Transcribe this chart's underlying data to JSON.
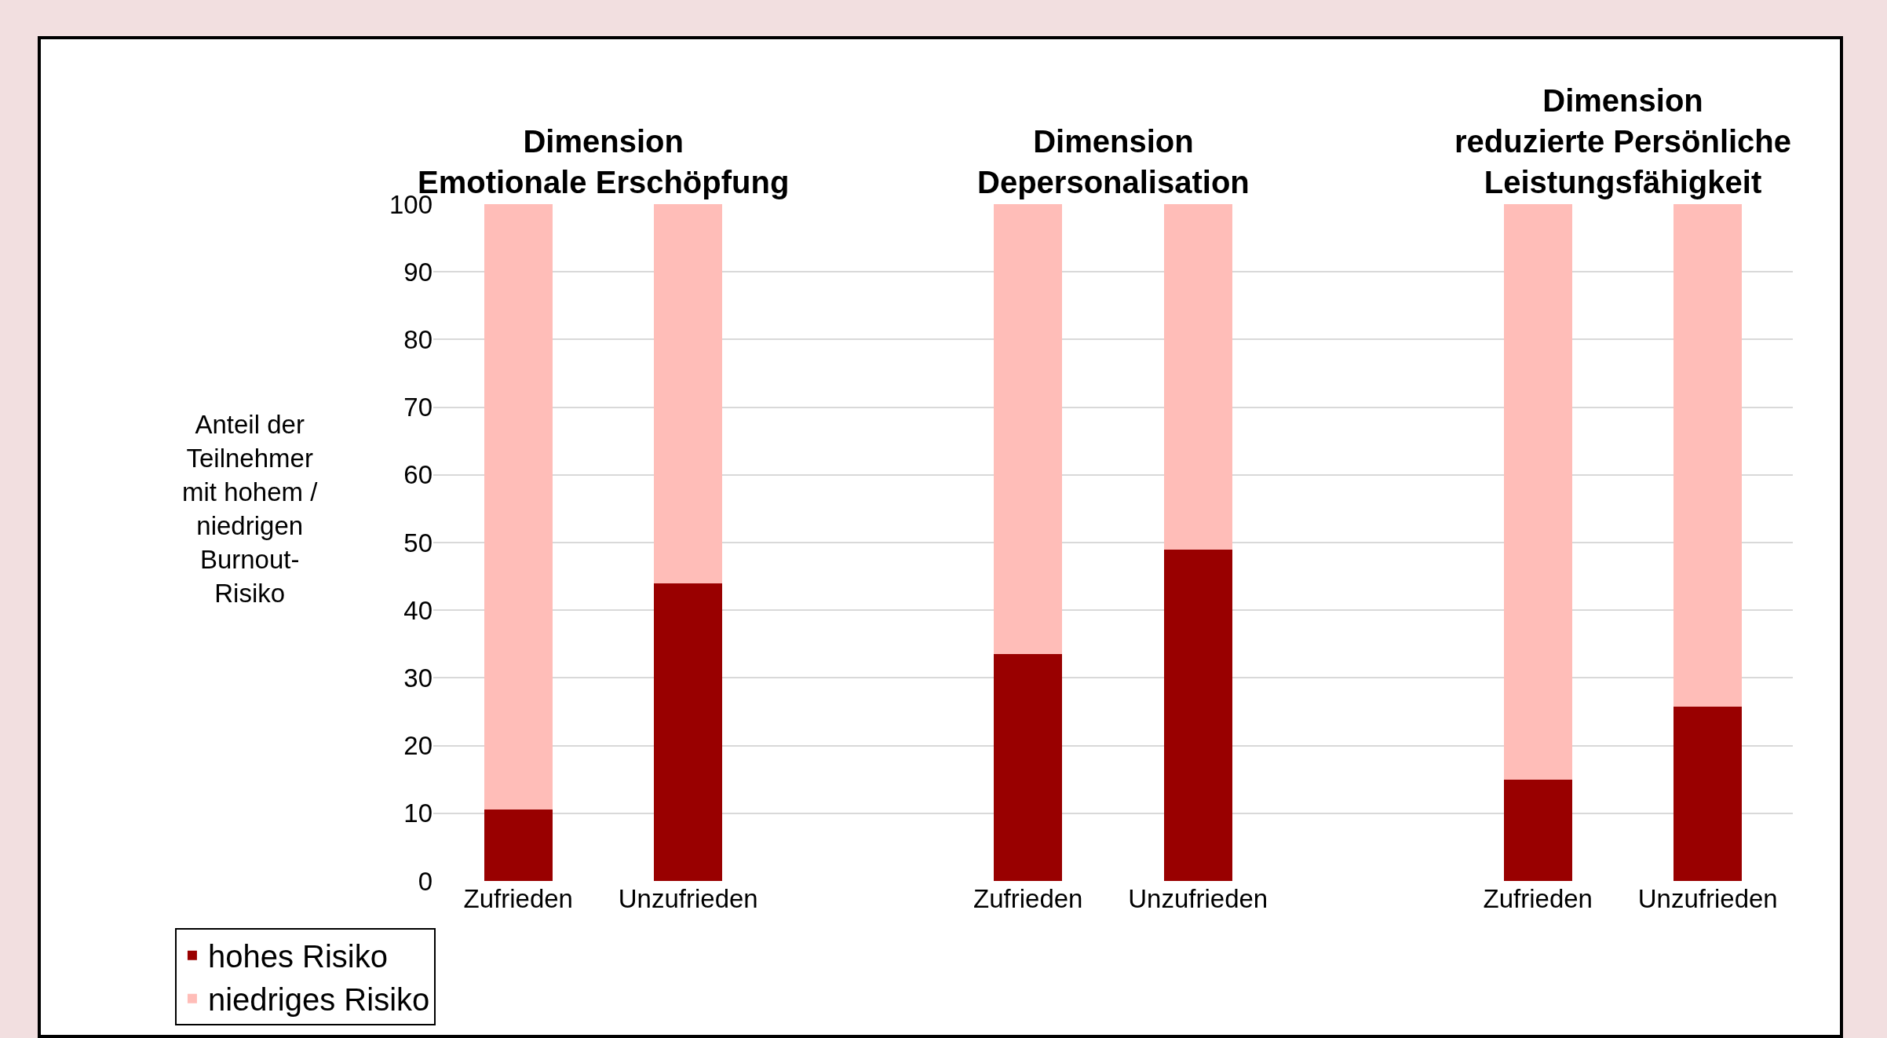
{
  "chart_data": {
    "type": "bar",
    "stacked": true,
    "categories": [
      "Zufrieden",
      "Unzufrieden",
      null,
      "Zufrieden",
      "Unzufrieden",
      null,
      "Zufrieden",
      "Unzufrieden"
    ],
    "series": [
      {
        "name": "hohes Risiko",
        "color": "#990000",
        "values": [
          10.5,
          44,
          null,
          33.5,
          49,
          null,
          15,
          25.7
        ]
      },
      {
        "name": "niedriges Risiko",
        "color": "#ffbdb8",
        "values": [
          89.5,
          56,
          null,
          66.5,
          51,
          null,
          85,
          74.3
        ]
      }
    ],
    "ylabel": "Anteil der\nTeilnehmer\nmit hohem /\nniedrigen\nBurnout-\nRisiko",
    "annotations": [
      "Dimension\nEmotionale Erschöpfung",
      "Dimension\nDepersonalisation",
      "Dimension\nreduzierte Persönliche\nLeistungsfähigkeit"
    ],
    "ylim": [
      0,
      100
    ],
    "yticks": [
      0,
      10,
      20,
      30,
      40,
      50,
      60,
      70,
      80,
      90,
      100
    ],
    "grid": "y",
    "legend": "bottom left"
  }
}
